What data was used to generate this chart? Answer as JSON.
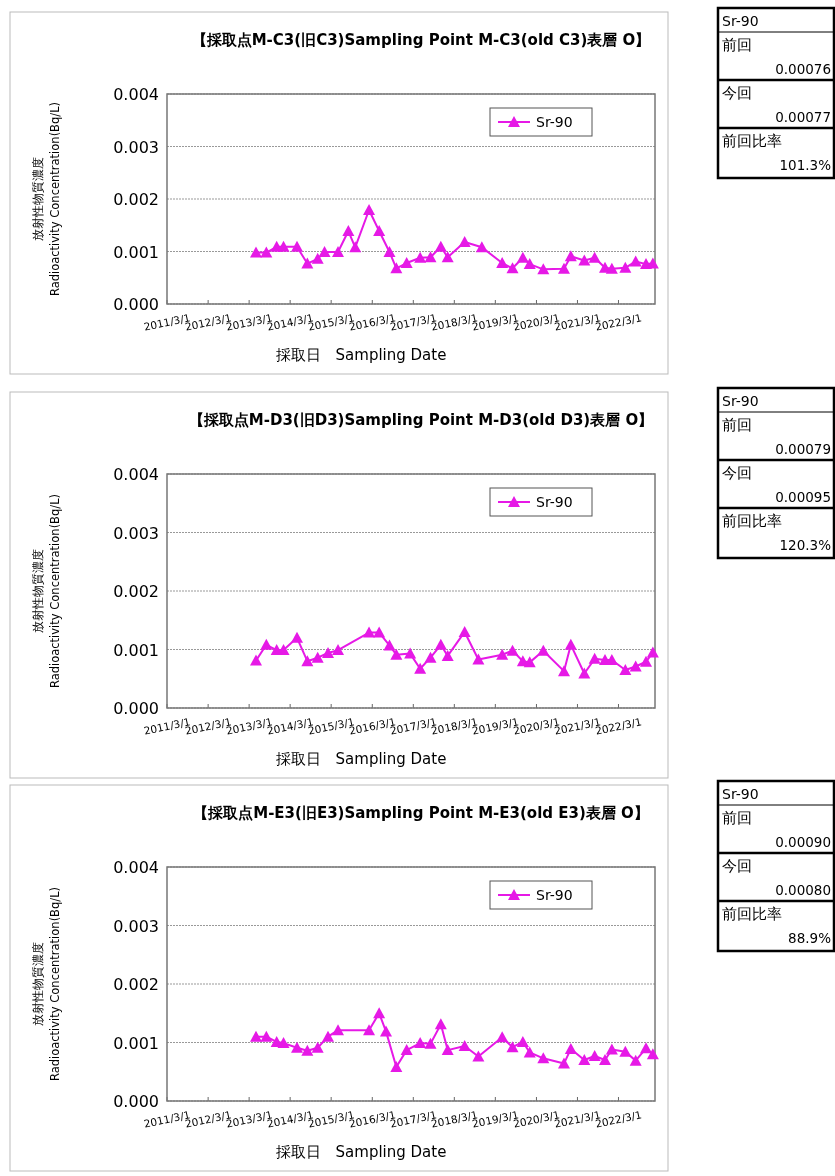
{
  "chart_data": [
    {
      "type": "line",
      "title": "【採取点M-C3(旧C3)Sampling Point M-C3(old C3)表層 O】",
      "xlabel": "採取日　Sampling Date",
      "ylabel": "放射性物質濃度 Radioactivity Concentration(Bq/L)",
      "grid": "y",
      "legend": "top right",
      "marker": "triangle",
      "line_style": "solid",
      "xlim": [
        "2011-03-01",
        "2023-01-20"
      ],
      "xticks": [
        {
          "value": "2011-03-01",
          "label": "2011/3/1"
        },
        {
          "value": "2012-03-01",
          "label": "2012/3/1"
        },
        {
          "value": "2013-03-01",
          "label": "2013/3/1"
        },
        {
          "value": "2014-03-01",
          "label": "2014/3/1"
        },
        {
          "value": "2015-03-01",
          "label": "2015/3/1"
        },
        {
          "value": "2016-03-01",
          "label": "2016/3/1"
        },
        {
          "value": "2017-03-01",
          "label": "2017/3/1"
        },
        {
          "value": "2018-03-01",
          "label": "2018/3/1"
        },
        {
          "value": "2019-03-01",
          "label": "2019/3/1"
        },
        {
          "value": "2020-03-01",
          "label": "2020/3/1"
        },
        {
          "value": "2021-03-01",
          "label": "2021/3/1"
        },
        {
          "value": "2022-03-01",
          "label": "2022/3/1"
        }
      ],
      "ylim": [
        0,
        0.004
      ],
      "yticks": [
        {
          "value": 0,
          "label": "0.000"
        },
        {
          "value": 0.001,
          "label": "0.001"
        },
        {
          "value": 0.002,
          "label": "0.002"
        },
        {
          "value": 0.003,
          "label": "0.003"
        },
        {
          "value": 0.004,
          "label": "0.004"
        }
      ],
      "x": [
        "2013-05",
        "2013-08",
        "2013-11",
        "2014-01",
        "2014-05",
        "2014-08",
        "2014-11",
        "2015-01",
        "2015-05",
        "2015-08",
        "2015-10",
        "2016-02",
        "2016-05",
        "2016-08",
        "2016-10",
        "2017-01",
        "2017-05",
        "2017-08",
        "2017-11",
        "2018-01",
        "2018-06",
        "2018-11",
        "2019-05",
        "2019-08",
        "2019-11",
        "2020-01",
        "2020-05",
        "2020-11",
        "2021-01",
        "2021-05",
        "2021-08",
        "2021-11",
        "2022-01",
        "2022-05",
        "2022-08",
        "2022-11",
        "2023-01"
      ],
      "series": [
        {
          "name": "Sr-90",
          "color": "#e619e6",
          "values": [
            0.00098,
            0.00098,
            0.00109,
            0.00109,
            0.00109,
            0.00077,
            0.00086,
            0.00099,
            0.00099,
            0.00139,
            0.00108,
            0.00179,
            0.00139,
            0.00099,
            0.00068,
            0.00078,
            0.00088,
            0.00089,
            0.00109,
            0.00089,
            0.00118,
            0.00108,
            0.00078,
            0.00068,
            0.00088,
            0.00076,
            0.00066,
            0.00067,
            0.00091,
            0.00083,
            0.00088,
            0.00069,
            0.00067,
            0.00069,
            0.00081,
            0.00076,
            0.00077
          ]
        }
      ]
    },
    {
      "type": "other",
      "title": "Sr-90",
      "annotations": [
        "前回",
        "0.00076",
        "今回",
        "0.00077",
        "前回比率",
        "101.3%"
      ]
    },
    {
      "type": "line",
      "title": "【採取点M-D3(旧D3)Sampling Point M-D3(old D3)表層 O】",
      "xlabel": "採取日　Sampling Date",
      "ylabel": "放射性物質濃度 Radioactivity Concentration(Bq/L)",
      "grid": "y",
      "legend": "top right",
      "marker": "triangle",
      "line_style": "solid",
      "xlim": [
        "2011-03-01",
        "2023-01-20"
      ],
      "xticks": [
        {
          "value": "2011-03-01",
          "label": "2011/3/1"
        },
        {
          "value": "2012-03-01",
          "label": "2012/3/1"
        },
        {
          "value": "2013-03-01",
          "label": "2013/3/1"
        },
        {
          "value": "2014-03-01",
          "label": "2014/3/1"
        },
        {
          "value": "2015-03-01",
          "label": "2015/3/1"
        },
        {
          "value": "2016-03-01",
          "label": "2016/3/1"
        },
        {
          "value": "2017-03-01",
          "label": "2017/3/1"
        },
        {
          "value": "2018-03-01",
          "label": "2018/3/1"
        },
        {
          "value": "2019-03-01",
          "label": "2019/3/1"
        },
        {
          "value": "2020-03-01",
          "label": "2020/3/1"
        },
        {
          "value": "2021-03-01",
          "label": "2021/3/1"
        },
        {
          "value": "2022-03-01",
          "label": "2022/3/1"
        }
      ],
      "ylim": [
        0,
        0.004
      ],
      "yticks": [
        {
          "value": 0,
          "label": "0.000"
        },
        {
          "value": 0.001,
          "label": "0.001"
        },
        {
          "value": 0.002,
          "label": "0.002"
        },
        {
          "value": 0.003,
          "label": "0.003"
        },
        {
          "value": 0.004,
          "label": "0.004"
        }
      ],
      "x": [
        "2013-05",
        "2013-08",
        "2013-11",
        "2014-01",
        "2014-05",
        "2014-08",
        "2014-11",
        "2015-02",
        "2015-05",
        "2016-02",
        "2016-05",
        "2016-08",
        "2016-10",
        "2017-02",
        "2017-05",
        "2017-08",
        "2017-11",
        "2018-01",
        "2018-06",
        "2018-10",
        "2019-05",
        "2019-08",
        "2019-11",
        "2020-01",
        "2020-05",
        "2020-11",
        "2021-01",
        "2021-05",
        "2021-08",
        "2021-11",
        "2022-01",
        "2022-05",
        "2022-08",
        "2022-11",
        "2023-01"
      ],
      "series": [
        {
          "name": "Sr-90",
          "color": "#e619e6",
          "values": [
            0.00081,
            0.00108,
            0.00099,
            0.00099,
            0.0012,
            0.0008,
            0.00086,
            0.00094,
            0.00099,
            0.00129,
            0.00129,
            0.00107,
            0.00091,
            0.00093,
            0.00067,
            0.00086,
            0.00108,
            0.00089,
            0.0013,
            0.00083,
            0.00091,
            0.00098,
            0.0008,
            0.00078,
            0.00098,
            0.00063,
            0.00108,
            0.00059,
            0.00084,
            0.00082,
            0.00082,
            0.00065,
            0.00071,
            0.00079,
            0.00095
          ]
        }
      ]
    },
    {
      "type": "other",
      "title": "Sr-90",
      "annotations": [
        "前回",
        "0.00079",
        "今回",
        "0.00095",
        "前回比率",
        "120.3%"
      ]
    },
    {
      "type": "line",
      "title": "【採取点M-E3(旧E3)Sampling Point M-E3(old E3)表層 O】",
      "xlabel": "採取日　Sampling Date",
      "ylabel": "放射性物質濃度 Radioactivity Concentration(Bq/L)",
      "grid": "y",
      "legend": "top right",
      "marker": "triangle",
      "line_style": "solid",
      "xlim": [
        "2011-03-01",
        "2023-01-20"
      ],
      "xticks": [
        {
          "value": "2011-03-01",
          "label": "2011/3/1"
        },
        {
          "value": "2012-03-01",
          "label": "2012/3/1"
        },
        {
          "value": "2013-03-01",
          "label": "2013/3/1"
        },
        {
          "value": "2014-03-01",
          "label": "2014/3/1"
        },
        {
          "value": "2015-03-01",
          "label": "2015/3/1"
        },
        {
          "value": "2016-03-01",
          "label": "2016/3/1"
        },
        {
          "value": "2017-03-01",
          "label": "2017/3/1"
        },
        {
          "value": "2018-03-01",
          "label": "2018/3/1"
        },
        {
          "value": "2019-03-01",
          "label": "2019/3/1"
        },
        {
          "value": "2020-03-01",
          "label": "2020/3/1"
        },
        {
          "value": "2021-03-01",
          "label": "2021/3/1"
        },
        {
          "value": "2022-03-01",
          "label": "2022/3/1"
        }
      ],
      "ylim": [
        0,
        0.004
      ],
      "yticks": [
        {
          "value": 0,
          "label": "0.000"
        },
        {
          "value": 0.001,
          "label": "0.001"
        },
        {
          "value": 0.002,
          "label": "0.002"
        },
        {
          "value": 0.003,
          "label": "0.003"
        },
        {
          "value": 0.004,
          "label": "0.004"
        }
      ],
      "x": [
        "2013-05",
        "2013-08",
        "2013-11",
        "2014-01",
        "2014-05",
        "2014-08",
        "2014-11",
        "2015-02",
        "2015-05",
        "2016-02",
        "2016-05",
        "2016-07",
        "2016-10",
        "2017-01",
        "2017-05",
        "2017-08",
        "2017-11",
        "2018-01",
        "2018-06",
        "2018-10",
        "2019-05",
        "2019-08",
        "2019-11",
        "2020-01",
        "2020-05",
        "2020-11",
        "2021-01",
        "2021-05",
        "2021-08",
        "2021-11",
        "2022-01",
        "2022-05",
        "2022-08",
        "2022-11",
        "2023-01"
      ],
      "series": [
        {
          "name": "Sr-90",
          "color": "#e619e6",
          "values": [
            0.0011,
            0.0011,
            0.00101,
            0.00099,
            0.00091,
            0.00086,
            0.00091,
            0.0011,
            0.00121,
            0.00121,
            0.0015,
            0.00119,
            0.00058,
            0.00087,
            0.00099,
            0.00098,
            0.00131,
            0.00087,
            0.00094,
            0.00076,
            0.00109,
            0.00092,
            0.00101,
            0.00083,
            0.00073,
            0.00064,
            0.00089,
            0.0007,
            0.00077,
            0.0007,
            0.00088,
            0.00084,
            0.00069,
            0.0009,
            0.0008
          ]
        }
      ]
    },
    {
      "type": "other",
      "title": "Sr-90",
      "annotations": [
        "前回",
        "0.00090",
        "今回",
        "0.00080",
        "前回比率",
        "88.9%"
      ]
    }
  ]
}
